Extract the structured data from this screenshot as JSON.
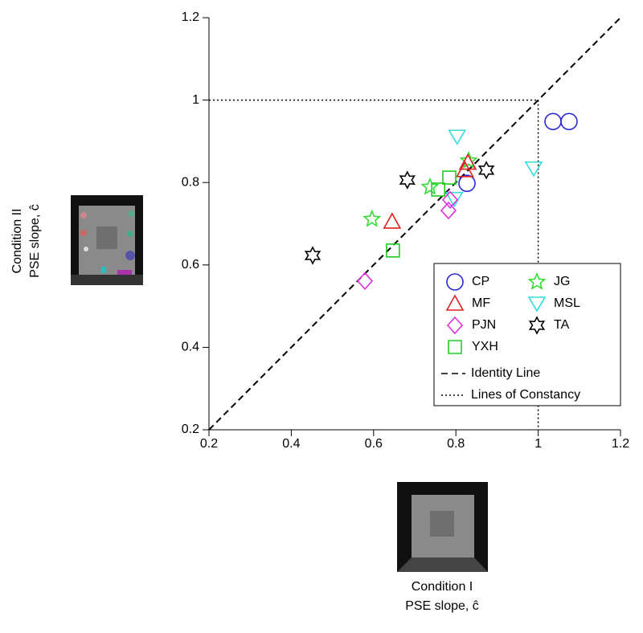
{
  "chart_data": {
    "type": "scatter",
    "xlabel": [
      "Condition I",
      "PSE slope, ĉ"
    ],
    "ylabel": [
      "Condition II",
      "PSE slope, ĉ"
    ],
    "xlim": [
      0.2,
      1.2
    ],
    "ylim": [
      0.2,
      1.2
    ],
    "xticks": [
      0.2,
      0.4,
      0.6,
      0.8,
      1,
      1.2
    ],
    "yticks": [
      0.2,
      0.4,
      0.6,
      0.8,
      1,
      1.2
    ],
    "constancy": {
      "x": 1,
      "y": 1
    },
    "series": [
      {
        "name": "CP",
        "color": "#2a2ad4",
        "marker": "circle",
        "x": [
          1.036,
          1.075,
          0.827
        ],
        "values": [
          0.948,
          0.948,
          0.798
        ]
      },
      {
        "name": "JG",
        "color": "#33dd33",
        "marker": "star5",
        "x": [
          0.596,
          0.737,
          0.831
        ],
        "values": [
          0.711,
          0.789,
          0.853
        ]
      },
      {
        "name": "MF",
        "color": "#dd2222",
        "marker": "triangle",
        "x": [
          0.645,
          0.829,
          0.822
        ],
        "values": [
          0.705,
          0.848,
          0.83
        ]
      },
      {
        "name": "MSL",
        "color": "#33dddd",
        "marker": "triangle-down",
        "x": [
          0.803,
          0.989,
          0.796
        ],
        "values": [
          0.911,
          0.834,
          0.76
        ]
      },
      {
        "name": "PJN",
        "color": "#dd33dd",
        "marker": "diamond",
        "x": [
          0.579,
          0.786,
          0.782
        ],
        "values": [
          0.561,
          0.758,
          0.732
        ]
      },
      {
        "name": "TA",
        "color": "#000000",
        "marker": "star6",
        "x": [
          0.452,
          0.682,
          0.874
        ],
        "values": [
          0.623,
          0.806,
          0.83
        ]
      },
      {
        "name": "YXH",
        "color": "#22cc22",
        "marker": "square",
        "x": [
          0.647,
          0.757,
          0.784
        ],
        "values": [
          0.635,
          0.783,
          0.812
        ]
      }
    ],
    "lines": [
      {
        "name": "Identity Line",
        "style": "dashed"
      },
      {
        "name": "Lines of Constancy",
        "style": "dotted"
      }
    ]
  }
}
